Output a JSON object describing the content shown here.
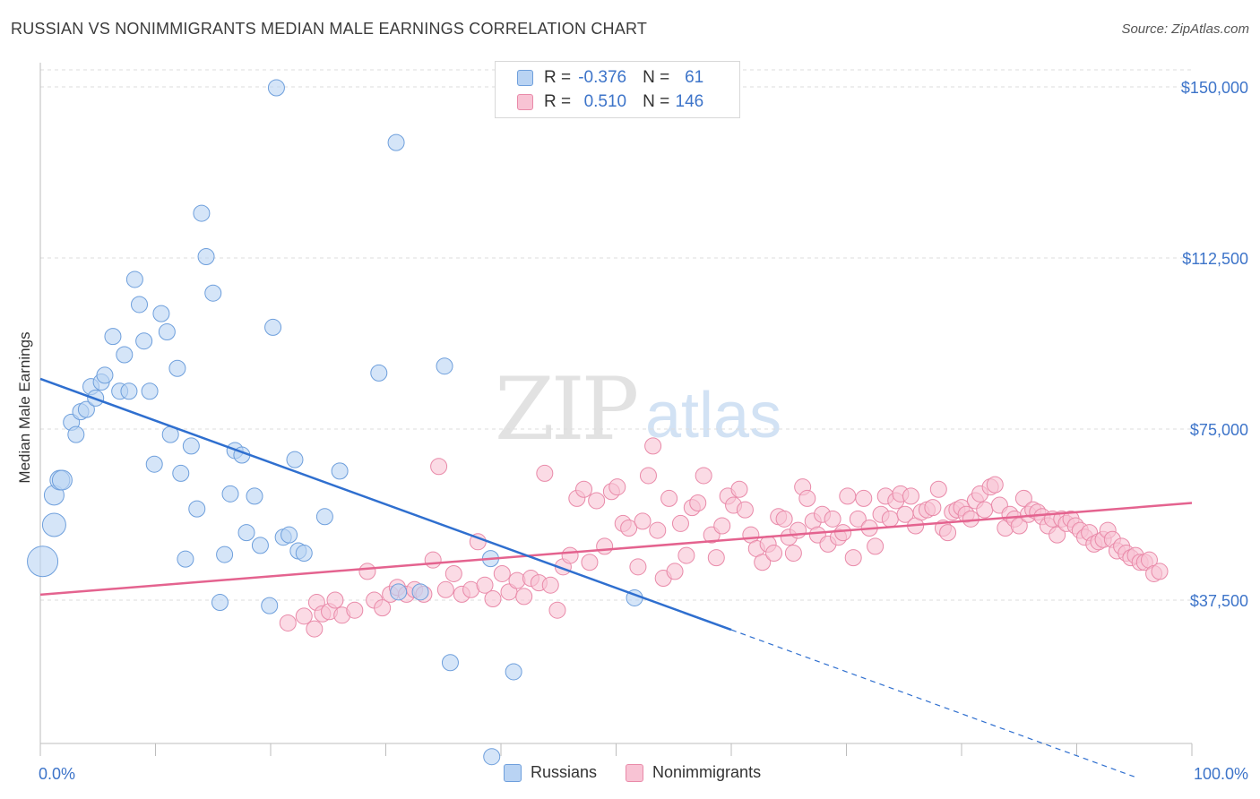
{
  "title": "RUSSIAN VS NONIMMIGRANTS MEDIAN MALE EARNINGS CORRELATION CHART",
  "source": "Source: ZipAtlas.com",
  "watermark": {
    "zip": "ZIP",
    "atlas": "atlas"
  },
  "legend_top": {
    "r_label": "R =",
    "n_label": "N =",
    "rows": [
      {
        "r": "-0.376",
        "n": "61"
      },
      {
        "r": "0.510",
        "n": "146"
      }
    ]
  },
  "legend_bottom": [
    "Russians",
    "Nonimmigrants"
  ],
  "colors": {
    "russians_fill": "#b9d3f3",
    "russians_stroke": "#6e9fdc",
    "russians_line": "#2f6fcf",
    "nonimmigrants_fill": "#f8c3d4",
    "nonimmigrants_stroke": "#e98aa9",
    "nonimmigrants_line": "#e4638f",
    "tick_label": "#3d74c9"
  },
  "chart_data": {
    "type": "scatter",
    "title": "RUSSIAN VS NONIMMIGRANTS MEDIAN MALE EARNINGS CORRELATION CHART",
    "xlabel": "",
    "ylabel": "Median Male Earnings",
    "xlim": [
      0,
      100
    ],
    "ylim": [
      0,
      155000
    ],
    "x_tick_labels": [
      "0.0%",
      "100.0%"
    ],
    "y_ticks": [
      37500,
      75000,
      112500,
      150000
    ],
    "y_tick_labels": [
      "$37,500",
      "$75,000",
      "$112,500",
      "$150,000"
    ],
    "grid": true,
    "legend_position": "top-center",
    "series": [
      {
        "name": "Russians",
        "R": -0.376,
        "N": 61,
        "trend": {
          "x": [
            0,
            60
          ],
          "y": [
            86000,
            31000
          ],
          "dashed_to": [
            95,
            -1200
          ]
        },
        "points": [
          [
            0.2,
            46000
          ],
          [
            1.2,
            54000
          ],
          [
            1.2,
            60500
          ],
          [
            1.7,
            63800
          ],
          [
            1.9,
            63800
          ],
          [
            2.7,
            76500
          ],
          [
            3.1,
            73800
          ],
          [
            3.5,
            78800
          ],
          [
            4.0,
            79300
          ],
          [
            4.4,
            84300
          ],
          [
            4.8,
            81800
          ],
          [
            5.3,
            85300
          ],
          [
            5.6,
            86800
          ],
          [
            6.3,
            95300
          ],
          [
            6.9,
            83300
          ],
          [
            7.3,
            91300
          ],
          [
            7.7,
            83300
          ],
          [
            8.2,
            107800
          ],
          [
            8.6,
            102300
          ],
          [
            9.0,
            94300
          ],
          [
            9.5,
            83300
          ],
          [
            9.9,
            67300
          ],
          [
            10.5,
            100300
          ],
          [
            11.0,
            96300
          ],
          [
            11.3,
            73800
          ],
          [
            11.9,
            88300
          ],
          [
            12.2,
            65300
          ],
          [
            12.6,
            46500
          ],
          [
            13.1,
            71300
          ],
          [
            13.6,
            57500
          ],
          [
            14.0,
            122300
          ],
          [
            14.4,
            112800
          ],
          [
            15.0,
            104800
          ],
          [
            15.6,
            37000
          ],
          [
            16.0,
            47500
          ],
          [
            16.5,
            60800
          ],
          [
            16.9,
            70300
          ],
          [
            17.5,
            69300
          ],
          [
            17.9,
            52300
          ],
          [
            18.6,
            60300
          ],
          [
            19.1,
            49500
          ],
          [
            19.9,
            36300
          ],
          [
            20.2,
            97300
          ],
          [
            20.5,
            149800
          ],
          [
            21.1,
            51300
          ],
          [
            21.6,
            51800
          ],
          [
            22.1,
            68300
          ],
          [
            22.4,
            48300
          ],
          [
            22.9,
            47800
          ],
          [
            24.7,
            55800
          ],
          [
            26.0,
            65800
          ],
          [
            29.4,
            87300
          ],
          [
            30.9,
            137800
          ],
          [
            31.1,
            39300
          ],
          [
            33.0,
            39300
          ],
          [
            35.1,
            88800
          ],
          [
            35.6,
            23800
          ],
          [
            39.1,
            46600
          ],
          [
            39.2,
            3200
          ],
          [
            41.1,
            21800
          ],
          [
            51.6,
            38000
          ]
        ]
      },
      {
        "name": "Nonimmigrants",
        "R": 0.51,
        "N": 146,
        "trend": {
          "x": [
            0,
            100
          ],
          "y": [
            38700,
            58800
          ]
        },
        "points": [
          [
            21.5,
            32500
          ],
          [
            22.9,
            34000
          ],
          [
            23.8,
            31200
          ],
          [
            24.0,
            37000
          ],
          [
            24.5,
            34500
          ],
          [
            25.1,
            35000
          ],
          [
            25.6,
            37500
          ],
          [
            26.2,
            34200
          ],
          [
            27.3,
            35300
          ],
          [
            28.4,
            43800
          ],
          [
            29.0,
            37500
          ],
          [
            29.7,
            35800
          ],
          [
            30.4,
            38800
          ],
          [
            31.0,
            40300
          ],
          [
            31.8,
            38800
          ],
          [
            32.5,
            39800
          ],
          [
            33.3,
            38800
          ],
          [
            34.1,
            46300
          ],
          [
            34.6,
            66800
          ],
          [
            35.2,
            39800
          ],
          [
            35.9,
            43300
          ],
          [
            36.6,
            38800
          ],
          [
            37.4,
            39800
          ],
          [
            38.0,
            50300
          ],
          [
            38.6,
            40800
          ],
          [
            39.3,
            37800
          ],
          [
            40.1,
            43300
          ],
          [
            40.7,
            39300
          ],
          [
            41.4,
            41800
          ],
          [
            42.0,
            38300
          ],
          [
            42.6,
            42300
          ],
          [
            43.3,
            41300
          ],
          [
            43.8,
            65300
          ],
          [
            44.3,
            40800
          ],
          [
            44.9,
            35300
          ],
          [
            45.4,
            44800
          ],
          [
            46.0,
            47300
          ],
          [
            46.6,
            59800
          ],
          [
            47.2,
            61800
          ],
          [
            47.7,
            45800
          ],
          [
            48.3,
            59300
          ],
          [
            49.0,
            49300
          ],
          [
            49.6,
            61300
          ],
          [
            50.1,
            62300
          ],
          [
            50.6,
            54300
          ],
          [
            51.1,
            53300
          ],
          [
            51.9,
            44800
          ],
          [
            52.3,
            54800
          ],
          [
            52.8,
            64800
          ],
          [
            53.2,
            71300
          ],
          [
            53.6,
            52800
          ],
          [
            54.1,
            42300
          ],
          [
            54.6,
            59800
          ],
          [
            55.1,
            43800
          ],
          [
            55.6,
            54300
          ],
          [
            56.1,
            47300
          ],
          [
            56.6,
            57800
          ],
          [
            57.1,
            58800
          ],
          [
            57.6,
            64800
          ],
          [
            58.3,
            51800
          ],
          [
            58.7,
            46800
          ],
          [
            59.2,
            53800
          ],
          [
            59.7,
            60300
          ],
          [
            60.2,
            58300
          ],
          [
            60.7,
            61800
          ],
          [
            61.2,
            57300
          ],
          [
            61.7,
            51800
          ],
          [
            62.2,
            48800
          ],
          [
            62.7,
            45800
          ],
          [
            63.2,
            49800
          ],
          [
            63.7,
            47800
          ],
          [
            64.1,
            55800
          ],
          [
            64.6,
            55300
          ],
          [
            65.0,
            51300
          ],
          [
            65.4,
            47800
          ],
          [
            65.8,
            52800
          ],
          [
            66.2,
            62300
          ],
          [
            66.6,
            59800
          ],
          [
            67.1,
            54800
          ],
          [
            67.5,
            51800
          ],
          [
            67.9,
            56300
          ],
          [
            68.4,
            49800
          ],
          [
            68.8,
            55300
          ],
          [
            69.3,
            51300
          ],
          [
            69.7,
            52300
          ],
          [
            70.1,
            60300
          ],
          [
            70.6,
            46800
          ],
          [
            71.0,
            55300
          ],
          [
            71.5,
            59800
          ],
          [
            72.0,
            53300
          ],
          [
            72.5,
            49300
          ],
          [
            73.0,
            56300
          ],
          [
            73.4,
            60300
          ],
          [
            73.8,
            55300
          ],
          [
            74.3,
            59300
          ],
          [
            74.7,
            60800
          ],
          [
            75.1,
            56300
          ],
          [
            75.6,
            60300
          ],
          [
            76.0,
            53800
          ],
          [
            76.5,
            56800
          ],
          [
            77.0,
            57300
          ],
          [
            77.5,
            57800
          ],
          [
            78.0,
            61800
          ],
          [
            78.4,
            53300
          ],
          [
            78.8,
            52300
          ],
          [
            79.2,
            56800
          ],
          [
            79.6,
            57300
          ],
          [
            80.0,
            57800
          ],
          [
            80.4,
            56300
          ],
          [
            80.8,
            55300
          ],
          [
            81.2,
            59300
          ],
          [
            81.6,
            60800
          ],
          [
            82.0,
            57300
          ],
          [
            82.5,
            62300
          ],
          [
            82.9,
            62800
          ],
          [
            83.3,
            58300
          ],
          [
            83.8,
            53300
          ],
          [
            84.2,
            56300
          ],
          [
            84.6,
            55300
          ],
          [
            85.0,
            53800
          ],
          [
            85.4,
            59800
          ],
          [
            85.8,
            56300
          ],
          [
            86.2,
            57300
          ],
          [
            86.6,
            56800
          ],
          [
            87.0,
            55800
          ],
          [
            87.5,
            53800
          ],
          [
            87.9,
            55300
          ],
          [
            88.3,
            51800
          ],
          [
            88.7,
            55300
          ],
          [
            89.1,
            54300
          ],
          [
            89.5,
            55300
          ],
          [
            89.9,
            53800
          ],
          [
            90.3,
            52800
          ],
          [
            90.7,
            51300
          ],
          [
            91.1,
            52300
          ],
          [
            91.5,
            49800
          ],
          [
            91.9,
            50300
          ],
          [
            92.3,
            50800
          ],
          [
            92.7,
            52800
          ],
          [
            93.1,
            50800
          ],
          [
            93.5,
            48300
          ],
          [
            93.9,
            49300
          ],
          [
            94.3,
            47800
          ],
          [
            94.7,
            46800
          ],
          [
            95.1,
            47300
          ],
          [
            95.5,
            45800
          ],
          [
            95.9,
            45800
          ],
          [
            96.3,
            46300
          ],
          [
            96.7,
            43300
          ],
          [
            97.2,
            43800
          ]
        ]
      }
    ]
  }
}
